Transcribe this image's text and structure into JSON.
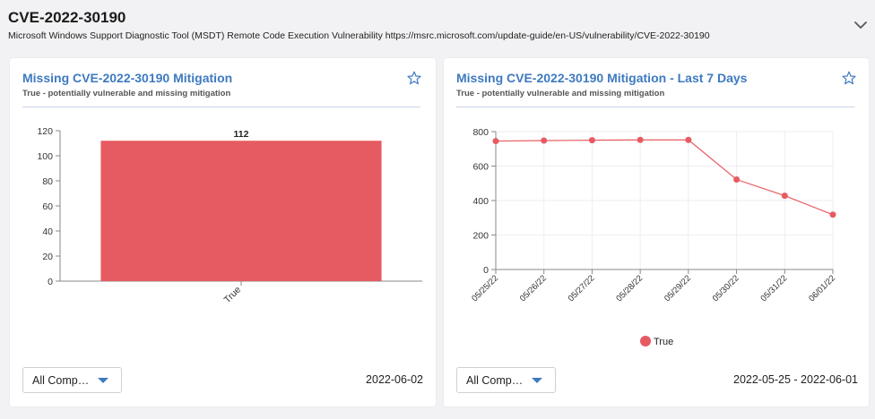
{
  "header": {
    "title": "CVE-2022-30190",
    "description": "Microsoft Windows Support Diagnostic Tool (MSDT) Remote Code Execution Vulnerability https://msrc.microsoft.com/update-guide/en-US/vulnerability/CVE-2022-30190"
  },
  "colors": {
    "accent": "#3e7ac0",
    "series": "#e65b61",
    "bar": "#e65b61"
  },
  "cards": [
    {
      "title": "Missing CVE-2022-30190 Mitigation",
      "subtitle": "True - potentially vulnerable and missing mitigation",
      "filter_label": "All Comp…",
      "date": "2022-06-02"
    },
    {
      "title": "Missing CVE-2022-30190 Mitigation - Last 7 Days",
      "subtitle": "True - potentially vulnerable and missing mitigation",
      "filter_label": "All Comp…",
      "date": "2022-05-25 - 2022-06-01"
    }
  ],
  "chart_data": [
    {
      "type": "bar",
      "categories": [
        "True"
      ],
      "values": [
        112
      ],
      "data_labels": [
        "112"
      ],
      "yticks": [
        "0",
        "20",
        "40",
        "60",
        "80",
        "100",
        "120"
      ],
      "ylim": [
        0,
        120
      ],
      "grid": false
    },
    {
      "type": "line",
      "x": [
        "05/25/22",
        "05/26/22",
        "05/27/22",
        "05/28/22",
        "05/29/22",
        "05/30/22",
        "05/31/22",
        "06/01/22"
      ],
      "series": [
        {
          "name": "True",
          "values": [
            745,
            748,
            750,
            752,
            752,
            522,
            428,
            318
          ]
        }
      ],
      "yticks": [
        "0",
        "200",
        "400",
        "600",
        "800"
      ],
      "ylim": [
        0,
        800
      ],
      "grid": true,
      "legend": "bottom"
    }
  ]
}
